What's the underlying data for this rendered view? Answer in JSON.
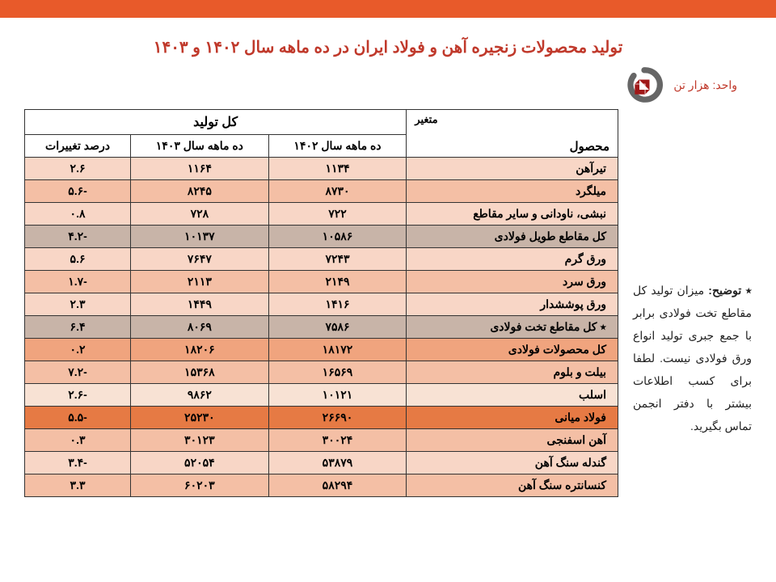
{
  "title": "تولید محصولات زنجیره آهن و فولاد ایران در ده ماهه سال ۱۴۰۲ و ۱۴۰۳",
  "unit": "واحد: هزار تن",
  "note_prefix": "٭ توضیح:",
  "note_body": "میزان تولید کل مقاطع تخت فولادی برابر با جمع جبری تولید انواع ورق فولادی نیست. لطفا برای کسب اطلاعات بیشتر با دفتر انجمن تماس بگیرید.",
  "headers": {
    "product_top": "متغیر",
    "product_bottom": "محصول",
    "total": "کل تولید",
    "y1402": "ده ماهه سال ۱۴۰۲",
    "y1403": "ده ماهه سال ۱۴۰۳",
    "change": "درصد تغییرات"
  },
  "colors": {
    "light1": "#f8d6c6",
    "light2": "#f4bfa5",
    "gray": "#c8b4a8",
    "orange1": "#f0a47e",
    "orange2": "#e88a5a",
    "orange3": "#e67a44",
    "pale": "#f8e2d4"
  },
  "rows": [
    {
      "product": "تیرآهن",
      "y1402": "۱۱۳۴",
      "y1403": "۱۱۶۴",
      "change": "۲.۶",
      "bg": "light1"
    },
    {
      "product": "میلگرد",
      "y1402": "۸۷۳۰",
      "y1403": "۸۲۴۵",
      "change": "-۵.۶",
      "bg": "light2"
    },
    {
      "product": "نبشی، ناودانی و سایر مقاطع",
      "y1402": "۷۲۲",
      "y1403": "۷۲۸",
      "change": "۰.۸",
      "bg": "light1"
    },
    {
      "product": "کل مقاطع طویل فولادی",
      "y1402": "۱۰۵۸۶",
      "y1403": "۱۰۱۳۷",
      "change": "-۴.۲",
      "bg": "gray"
    },
    {
      "product": "ورق گرم",
      "y1402": "۷۲۴۳",
      "y1403": "۷۶۴۷",
      "change": "۵.۶",
      "bg": "light1"
    },
    {
      "product": "ورق سرد",
      "y1402": "۲۱۴۹",
      "y1403": "۲۱۱۳",
      "change": "-۱.۷",
      "bg": "light2"
    },
    {
      "product": "ورق پوششدار",
      "y1402": "۱۴۱۶",
      "y1403": "۱۴۴۹",
      "change": "۲.۳",
      "bg": "light1"
    },
    {
      "product": "٭ کل مقاطع تخت فولادی",
      "y1402": "۷۵۸۶",
      "y1403": "۸۰۶۹",
      "change": "۶.۴",
      "bg": "gray"
    },
    {
      "product": "کل محصولات فولادی",
      "y1402": "۱۸۱۷۲",
      "y1403": "۱۸۲۰۶",
      "change": "۰.۲",
      "bg": "orange1"
    },
    {
      "product": "بیلت و بلوم",
      "y1402": "۱۶۵۶۹",
      "y1403": "۱۵۳۶۸",
      "change": "-۷.۲",
      "bg": "light2"
    },
    {
      "product": "اسلب",
      "y1402": "۱۰۱۲۱",
      "y1403": "۹۸۶۲",
      "change": "-۲.۶",
      "bg": "pale"
    },
    {
      "product": "فولاد میانی",
      "y1402": "۲۶۶۹۰",
      "y1403": "۲۵۲۳۰",
      "change": "-۵.۵",
      "bg": "orange3"
    },
    {
      "product": "آهن اسفنجی",
      "y1402": "۳۰۰۲۴",
      "y1403": "۳۰۱۲۳",
      "change": "۰.۳",
      "bg": "light2"
    },
    {
      "product": "گندله سنگ آهن",
      "y1402": "۵۳۸۷۹",
      "y1403": "۵۲۰۵۴",
      "change": "-۳.۴",
      "bg": "light1"
    },
    {
      "product": "کنسانتره سنگ آهن",
      "y1402": "۵۸۲۹۴",
      "y1403": "۶۰۲۰۳",
      "change": "۳.۳",
      "bg": "light2"
    }
  ]
}
